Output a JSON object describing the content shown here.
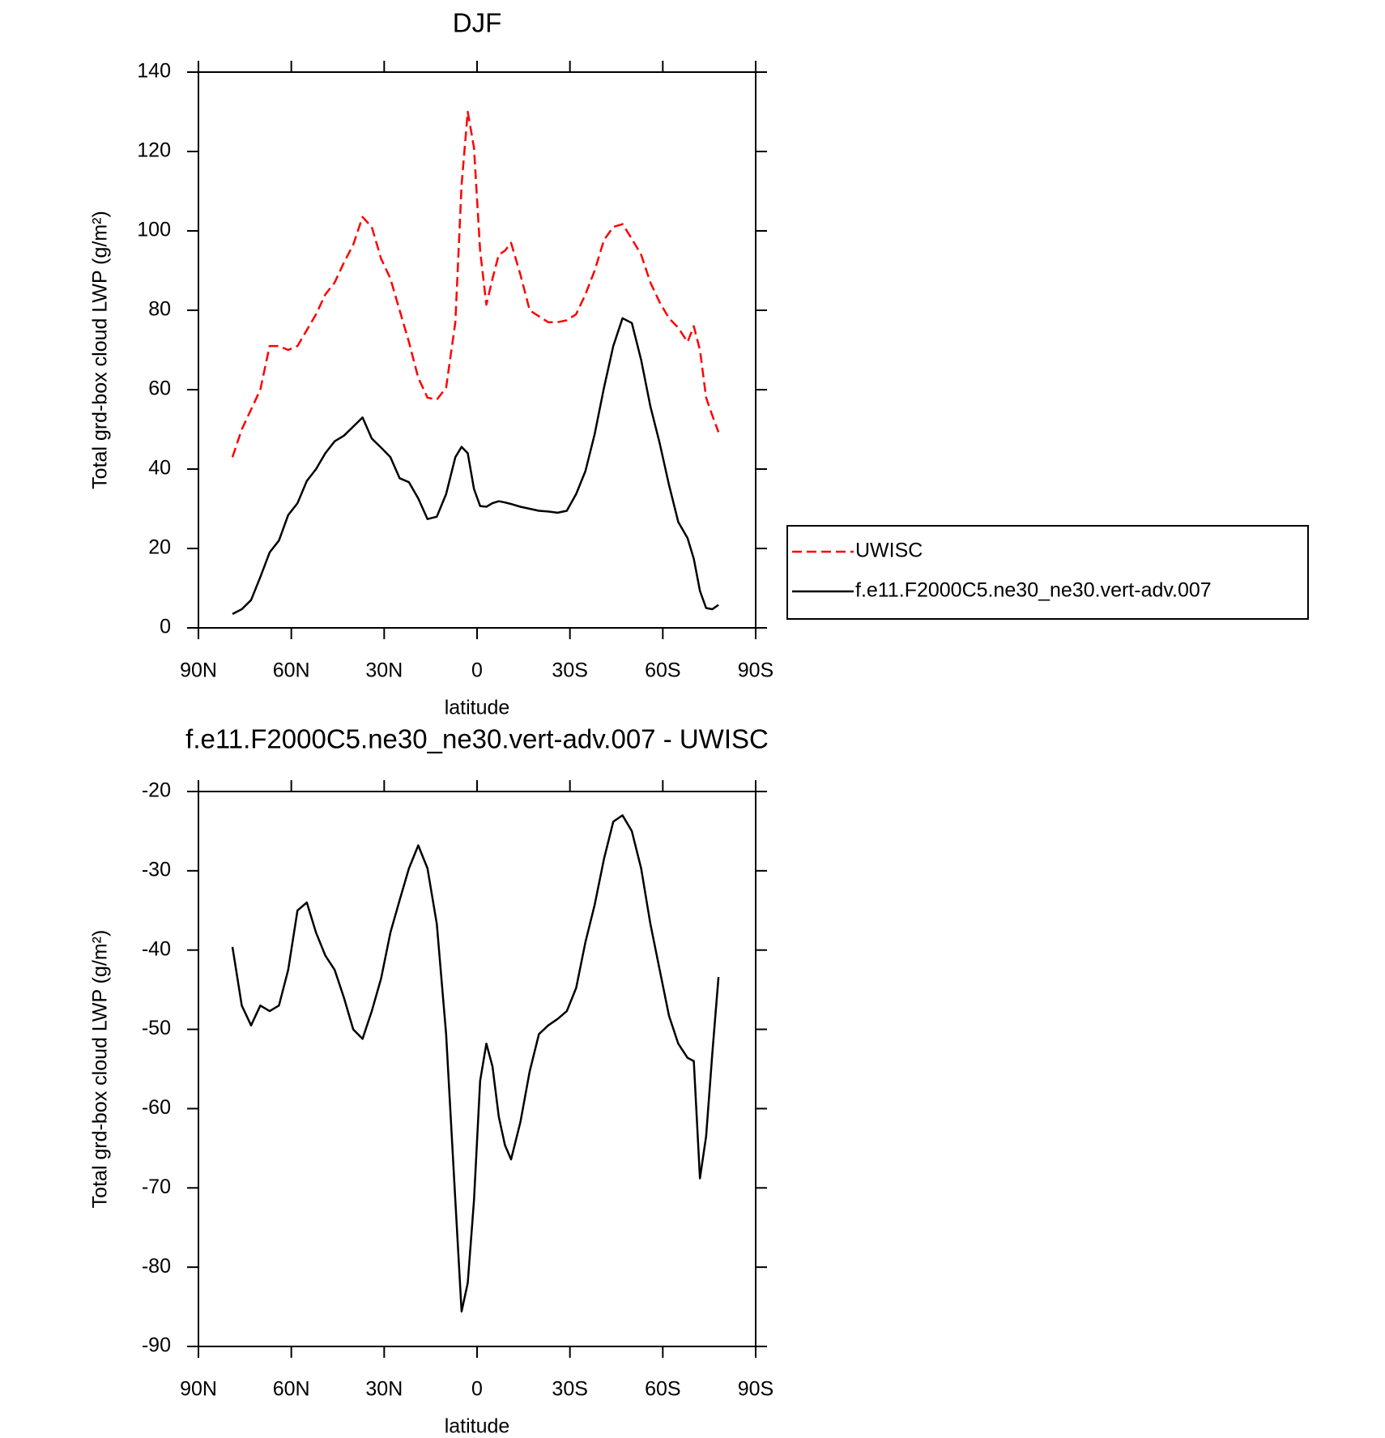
{
  "chart_data": [
    {
      "type": "line",
      "title": "DJF",
      "x_label": "latitude",
      "y_label": "Total grd-box cloud LWP (g/m²)",
      "x": [
        79,
        76,
        73,
        70,
        67,
        64,
        61,
        58,
        55,
        52,
        49,
        46,
        43,
        40,
        37,
        34,
        31,
        28,
        25,
        22,
        19,
        16,
        13,
        10,
        7,
        5,
        3,
        1,
        -1,
        -3,
        -5,
        -7,
        -9,
        -11,
        -14,
        -17,
        -20,
        -23,
        -26,
        -29,
        -32,
        -35,
        -38,
        -41,
        -44,
        -47,
        -50,
        -53,
        -56,
        -59,
        -62,
        -65,
        -68,
        -70,
        -72,
        -74,
        -76,
        -78
      ],
      "series": [
        {
          "name": "UWISC",
          "color": "#ff0000",
          "line_style": "dashed",
          "values": [
            43,
            50,
            55,
            60,
            71,
            71,
            70,
            71,
            75,
            79,
            84,
            87,
            92,
            96.5,
            103.5,
            101,
            93,
            88,
            80,
            72,
            63,
            58,
            57.5,
            60.5,
            77,
            111.6,
            130,
            121,
            95,
            81.4,
            88,
            94,
            95,
            97,
            89,
            80,
            78.5,
            77,
            77,
            77.5,
            79,
            84,
            90,
            97.7,
            101,
            101.7,
            98,
            94,
            87,
            82,
            78,
            75.6,
            72,
            76,
            70,
            58,
            53.5,
            49.3
          ]
        },
        {
          "name": "f.e11.F2000C5.ne30_ne30.vert-adv.007",
          "color": "#000000",
          "line_style": "solid",
          "values": [
            3.5,
            4.7,
            7,
            12.8,
            19,
            22,
            28.4,
            31.4,
            37,
            40,
            44,
            47,
            48.4,
            50.7,
            53,
            47.7,
            45.4,
            43,
            37.7,
            36.7,
            32.6,
            27.4,
            28,
            33.7,
            43,
            45.6,
            44,
            35,
            30.7,
            30.5,
            31.4,
            31.9,
            31.6,
            31.2,
            30.5,
            30,
            29.5,
            29.3,
            29,
            29.5,
            33.7,
            39.5,
            48.8,
            60.5,
            71,
            78,
            76.8,
            67.5,
            55.8,
            46.5,
            36,
            26.7,
            22.6,
            17.4,
            9.3,
            5,
            4.7,
            5.8
          ]
        }
      ],
      "xlim": [
        90,
        -90
      ],
      "xticks": [
        {
          "value": 90,
          "label": "90N"
        },
        {
          "value": 60,
          "label": "60N"
        },
        {
          "value": 30,
          "label": "30N"
        },
        0,
        {
          "value": -30,
          "label": "30S"
        },
        {
          "value": -60,
          "label": "60S"
        },
        {
          "value": -90,
          "label": "90S"
        }
      ],
      "ylim": [
        0,
        140
      ],
      "yticks": [
        0,
        20,
        40,
        60,
        80,
        100,
        120,
        140
      ],
      "legend": "outside-right"
    },
    {
      "type": "line",
      "title": "f.e11.F2000C5.ne30_ne30.vert-adv.007 - UWISC",
      "x_label": "latitude",
      "y_label": "Total grd-box cloud LWP (g/m²)",
      "x": [
        79,
        76,
        73,
        70,
        67,
        64,
        61,
        58,
        55,
        52,
        49,
        46,
        43,
        40,
        37,
        34,
        31,
        28,
        25,
        22,
        19,
        16,
        13,
        10,
        7,
        5,
        3,
        1,
        -1,
        -3,
        -5,
        -7,
        -9,
        -11,
        -14,
        -17,
        -20,
        -23,
        -26,
        -29,
        -32,
        -35,
        -38,
        -41,
        -44,
        -47,
        -50,
        -53,
        -56,
        -59,
        -62,
        -65,
        -68,
        -70,
        -72,
        -74,
        -76,
        -78
      ],
      "values": [
        -39.6,
        -47,
        -49.5,
        -47,
        -47.7,
        -47,
        -42.5,
        -35,
        -34,
        -37.8,
        -40.7,
        -42.5,
        -46,
        -50,
        -51.2,
        -47.7,
        -43.6,
        -37.8,
        -33.7,
        -29.7,
        -26.8,
        -29.7,
        -36.7,
        -50.6,
        -71.6,
        -85.6,
        -82,
        -71.6,
        -56.5,
        -51.8,
        -54.7,
        -61,
        -64.6,
        -66.4,
        -61.7,
        -55.3,
        -50.6,
        -49.5,
        -48.7,
        -47.7,
        -44.8,
        -39,
        -34.3,
        -28.5,
        -23.8,
        -23,
        -25,
        -29.7,
        -36.7,
        -42.5,
        -48.3,
        -51.8,
        -53.6,
        -54,
        -68.8,
        -63.5,
        -53,
        -43.4
      ],
      "color": "#000000",
      "xlim": [
        90,
        -90
      ],
      "xticks": [
        {
          "value": 90,
          "label": "90N"
        },
        {
          "value": 60,
          "label": "60N"
        },
        {
          "value": 30,
          "label": "30N"
        },
        0,
        {
          "value": -30,
          "label": "30S"
        },
        {
          "value": -60,
          "label": "60S"
        },
        {
          "value": -90,
          "label": "90S"
        }
      ],
      "ylim": [
        -90,
        -20
      ],
      "yticks": [
        -90,
        -80,
        -70,
        -60,
        -50,
        -40,
        -30,
        -20
      ]
    }
  ]
}
